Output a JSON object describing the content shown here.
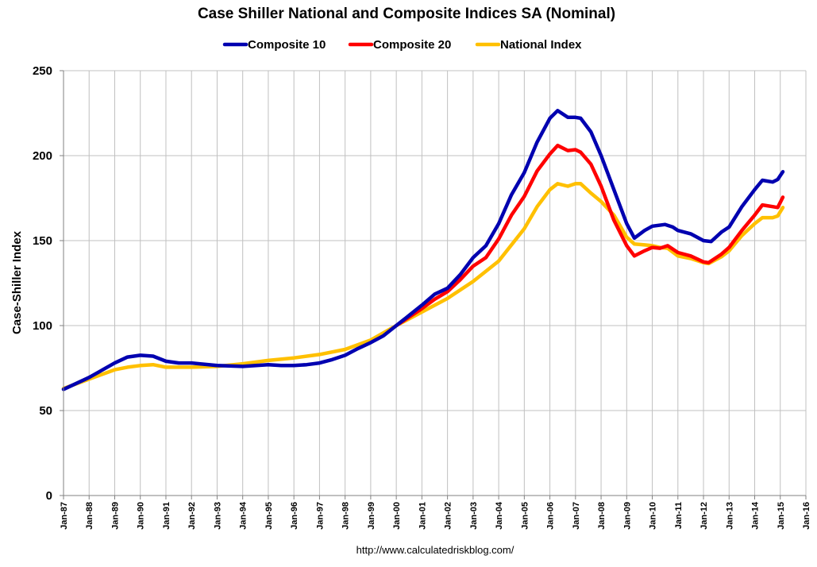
{
  "chart_data": {
    "type": "line",
    "title": "Case Shiller National and Composite Indices SA (Nominal)",
    "xlabel": "",
    "ylabel": "Case-Shiller Index",
    "ylim": [
      0,
      250
    ],
    "yticks": [
      0,
      50,
      100,
      150,
      200,
      250
    ],
    "xlim": [
      1987,
      2016
    ],
    "xtick_labels": [
      "Jan-87",
      "Jan-88",
      "Jan-89",
      "Jan-90",
      "Jan-91",
      "Jan-92",
      "Jan-93",
      "Jan-94",
      "Jan-95",
      "Jan-96",
      "Jan-97",
      "Jan-98",
      "Jan-99",
      "Jan-00",
      "Jan-01",
      "Jan-02",
      "Jan-03",
      "Jan-04",
      "Jan-05",
      "Jan-06",
      "Jan-07",
      "Jan-08",
      "Jan-09",
      "Jan-10",
      "Jan-11",
      "Jan-12",
      "Jan-13",
      "Jan-14",
      "Jan-15",
      "Jan-16"
    ],
    "grid": true,
    "legend_position": "top-center",
    "source_note": "http://www.calculatedriskblog.com/",
    "series": [
      {
        "name": "Composite 10",
        "color": "#0000b0",
        "points": [
          [
            1987.0,
            62.5
          ],
          [
            1988.0,
            69.5
          ],
          [
            1989.0,
            78.0
          ],
          [
            1989.5,
            81.5
          ],
          [
            1990.0,
            82.5
          ],
          [
            1990.5,
            82.0
          ],
          [
            1991.0,
            79.0
          ],
          [
            1991.5,
            78.0
          ],
          [
            1992.0,
            78.0
          ],
          [
            1993.0,
            76.5
          ],
          [
            1994.0,
            76.0
          ],
          [
            1995.0,
            77.0
          ],
          [
            1995.5,
            76.5
          ],
          [
            1996.0,
            76.5
          ],
          [
            1996.5,
            77.0
          ],
          [
            1997.0,
            78.0
          ],
          [
            1997.5,
            80.0
          ],
          [
            1998.0,
            82.5
          ],
          [
            1998.5,
            86.5
          ],
          [
            1999.0,
            90.0
          ],
          [
            1999.5,
            94.0
          ],
          [
            2000.0,
            100.0
          ],
          [
            2000.5,
            106.0
          ],
          [
            2001.0,
            112.0
          ],
          [
            2001.5,
            118.5
          ],
          [
            2002.0,
            122.0
          ],
          [
            2002.5,
            130.0
          ],
          [
            2003.0,
            140.0
          ],
          [
            2003.5,
            147.0
          ],
          [
            2004.0,
            160.0
          ],
          [
            2004.5,
            177.0
          ],
          [
            2005.0,
            190.0
          ],
          [
            2005.5,
            208.0
          ],
          [
            2006.0,
            222.0
          ],
          [
            2006.3,
            226.5
          ],
          [
            2006.7,
            222.5
          ],
          [
            2007.0,
            222.5
          ],
          [
            2007.2,
            222.0
          ],
          [
            2007.6,
            214.0
          ],
          [
            2008.0,
            200.0
          ],
          [
            2008.5,
            180.0
          ],
          [
            2009.0,
            160.0
          ],
          [
            2009.3,
            151.5
          ],
          [
            2009.7,
            156.0
          ],
          [
            2010.0,
            158.5
          ],
          [
            2010.5,
            159.5
          ],
          [
            2010.8,
            158.0
          ],
          [
            2011.0,
            156.0
          ],
          [
            2011.5,
            154.0
          ],
          [
            2012.0,
            150.0
          ],
          [
            2012.3,
            149.5
          ],
          [
            2012.7,
            155.0
          ],
          [
            2013.0,
            158.0
          ],
          [
            2013.5,
            170.0
          ],
          [
            2014.0,
            180.0
          ],
          [
            2014.3,
            185.5
          ],
          [
            2014.7,
            184.5
          ],
          [
            2014.9,
            186.0
          ],
          [
            2015.1,
            190.5
          ]
        ]
      },
      {
        "name": "Composite 20",
        "color": "#ff0000",
        "points": [
          [
            2000.0,
            100.0
          ],
          [
            2000.5,
            105.0
          ],
          [
            2001.0,
            110.0
          ],
          [
            2001.5,
            115.5
          ],
          [
            2002.0,
            120.0
          ],
          [
            2002.5,
            127.0
          ],
          [
            2003.0,
            135.0
          ],
          [
            2003.5,
            140.0
          ],
          [
            2004.0,
            151.0
          ],
          [
            2004.5,
            165.0
          ],
          [
            2005.0,
            176.0
          ],
          [
            2005.5,
            191.0
          ],
          [
            2006.0,
            201.0
          ],
          [
            2006.3,
            206.0
          ],
          [
            2006.7,
            203.0
          ],
          [
            2007.0,
            203.5
          ],
          [
            2007.2,
            202.0
          ],
          [
            2007.6,
            195.0
          ],
          [
            2008.0,
            182.0
          ],
          [
            2008.5,
            162.0
          ],
          [
            2009.0,
            147.0
          ],
          [
            2009.3,
            141.0
          ],
          [
            2009.7,
            144.0
          ],
          [
            2010.0,
            146.0
          ],
          [
            2010.3,
            145.5
          ],
          [
            2010.6,
            147.0
          ],
          [
            2011.0,
            143.0
          ],
          [
            2011.5,
            141.0
          ],
          [
            2012.0,
            137.5
          ],
          [
            2012.2,
            137.0
          ],
          [
            2012.7,
            142.0
          ],
          [
            2013.0,
            146.0
          ],
          [
            2013.5,
            156.0
          ],
          [
            2014.0,
            165.0
          ],
          [
            2014.3,
            171.0
          ],
          [
            2014.7,
            170.0
          ],
          [
            2014.9,
            169.5
          ],
          [
            2015.1,
            175.5
          ]
        ]
      },
      {
        "name": "National Index",
        "color": "#ffc000",
        "points": [
          [
            1987.0,
            63.0
          ],
          [
            1988.0,
            68.5
          ],
          [
            1989.0,
            74.0
          ],
          [
            1989.5,
            75.5
          ],
          [
            1990.0,
            76.5
          ],
          [
            1990.5,
            77.0
          ],
          [
            1991.0,
            75.5
          ],
          [
            1992.0,
            75.5
          ],
          [
            1993.0,
            76.0
          ],
          [
            1994.0,
            77.5
          ],
          [
            1995.0,
            79.5
          ],
          [
            1996.0,
            81.0
          ],
          [
            1997.0,
            83.0
          ],
          [
            1998.0,
            86.0
          ],
          [
            1999.0,
            91.5
          ],
          [
            2000.0,
            100.0
          ],
          [
            2001.0,
            108.0
          ],
          [
            2002.0,
            116.0
          ],
          [
            2003.0,
            126.0
          ],
          [
            2004.0,
            138.0
          ],
          [
            2005.0,
            157.0
          ],
          [
            2005.5,
            170.0
          ],
          [
            2006.0,
            180.0
          ],
          [
            2006.3,
            183.5
          ],
          [
            2006.7,
            182.0
          ],
          [
            2007.0,
            183.5
          ],
          [
            2007.2,
            183.5
          ],
          [
            2007.6,
            178.0
          ],
          [
            2008.0,
            173.0
          ],
          [
            2008.5,
            165.0
          ],
          [
            2009.0,
            152.0
          ],
          [
            2009.3,
            148.0
          ],
          [
            2009.7,
            147.5
          ],
          [
            2010.0,
            147.0
          ],
          [
            2010.3,
            146.0
          ],
          [
            2010.6,
            145.5
          ],
          [
            2011.0,
            141.0
          ],
          [
            2011.5,
            139.5
          ],
          [
            2012.0,
            137.0
          ],
          [
            2012.2,
            136.5
          ],
          [
            2012.7,
            140.5
          ],
          [
            2013.0,
            144.0
          ],
          [
            2013.5,
            153.0
          ],
          [
            2014.0,
            160.0
          ],
          [
            2014.3,
            163.5
          ],
          [
            2014.7,
            163.5
          ],
          [
            2014.9,
            164.5
          ],
          [
            2015.1,
            169.5
          ]
        ]
      }
    ]
  }
}
